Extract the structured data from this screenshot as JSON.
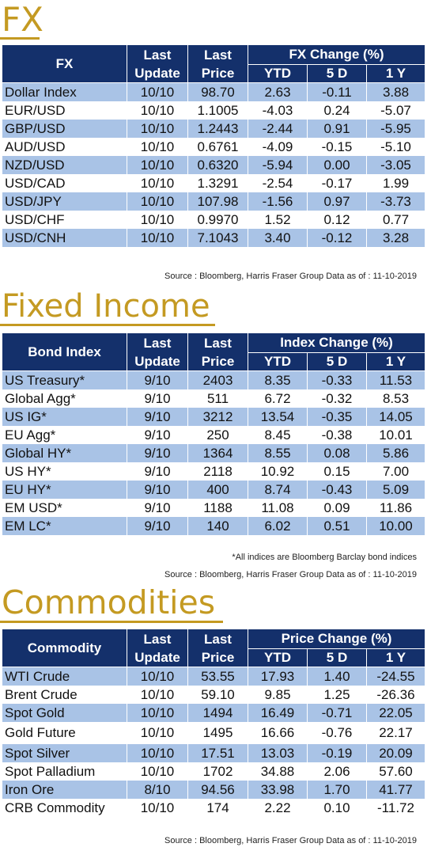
{
  "fx": {
    "title": "FX",
    "header": {
      "name": "FX",
      "last_update": [
        "Last",
        "Update"
      ],
      "last_price": [
        "Last",
        "Price"
      ],
      "group": "FX Change (%)",
      "ytd": "YTD",
      "d5": "5 D",
      "y1": "1 Y"
    },
    "rows": [
      [
        "Dollar Index",
        "10/10",
        "98.70",
        "2.63",
        "-0.11",
        "3.88"
      ],
      [
        "EUR/USD",
        "10/10",
        "1.1005",
        "-4.03",
        "0.24",
        "-5.07"
      ],
      [
        "GBP/USD",
        "10/10",
        "1.2443",
        "-2.44",
        "0.91",
        "-5.95"
      ],
      [
        "AUD/USD",
        "10/10",
        "0.6761",
        "-4.09",
        "-0.15",
        "-5.10"
      ],
      [
        "NZD/USD",
        "10/10",
        "0.6320",
        "-5.94",
        "0.00",
        "-3.05"
      ],
      [
        "USD/CAD",
        "10/10",
        "1.3291",
        "-2.54",
        "-0.17",
        "1.99"
      ],
      [
        "USD/JPY",
        "10/10",
        "107.98",
        "-1.56",
        "0.97",
        "-3.73"
      ],
      [
        "USD/CHF",
        "10/10",
        "0.9970",
        "1.52",
        "0.12",
        "0.77"
      ],
      [
        "USD/CNH",
        "10/10",
        "7.1043",
        "3.40",
        "-0.12",
        "3.28"
      ]
    ],
    "source": "Source : Bloomberg, Harris Fraser Group Data as of : 11-10-2019"
  },
  "fixed_income": {
    "title": "Fixed Income",
    "header": {
      "name": "Bond Index",
      "last_update": [
        "Last",
        "Update"
      ],
      "last_price": [
        "Last",
        "Price"
      ],
      "group": "Index Change (%)",
      "ytd": "YTD",
      "d5": "5 D",
      "y1": "1 Y"
    },
    "rows": [
      [
        "US Treasury*",
        "9/10",
        "2403",
        "8.35",
        "-0.33",
        "11.53"
      ],
      [
        "Global Agg*",
        "9/10",
        "511",
        "6.72",
        "-0.32",
        "8.53"
      ],
      [
        "US IG*",
        "9/10",
        "3212",
        "13.54",
        "-0.35",
        "14.05"
      ],
      [
        "EU Agg*",
        "9/10",
        "250",
        "8.45",
        "-0.38",
        "10.01"
      ],
      [
        "Global HY*",
        "9/10",
        "1364",
        "8.55",
        "0.08",
        "5.86"
      ],
      [
        "US HY*",
        "9/10",
        "2118",
        "10.92",
        "0.15",
        "7.00"
      ],
      [
        "EU HY*",
        "9/10",
        "400",
        "8.74",
        "-0.43",
        "5.09"
      ],
      [
        "EM USD*",
        "9/10",
        "1188",
        "11.08",
        "0.09",
        "11.86"
      ],
      [
        "EM LC*",
        "9/10",
        "140",
        "6.02",
        "0.51",
        "10.00"
      ]
    ],
    "note": "*All indices are Bloomberg Barclay bond indices",
    "source": "Source : Bloomberg, Harris Fraser Group Data as of : 11-10-2019"
  },
  "commodities": {
    "title": "Commodities",
    "header": {
      "name": "Commodity",
      "last_update": [
        "Last",
        "Update"
      ],
      "last_price": [
        "Last",
        "Price"
      ],
      "group": "Price Change (%)",
      "ytd": "YTD",
      "d5": "5 D",
      "y1": "1 Y"
    },
    "rows": [
      [
        "WTI Crude",
        "10/10",
        "53.55",
        "17.93",
        "1.40",
        "-24.55"
      ],
      [
        "Brent Crude",
        "10/10",
        "59.10",
        "9.85",
        "1.25",
        "-26.36"
      ],
      [
        "Spot Gold",
        "10/10",
        "1494",
        "16.49",
        "-0.71",
        "22.05"
      ],
      [
        "Gold Future",
        "10/10",
        "1495",
        "16.66",
        "-0.76",
        "22.17"
      ],
      [
        "Spot Silver",
        "10/10",
        "17.51",
        "13.03",
        "-0.19",
        "20.09"
      ],
      [
        "Spot Palladium",
        "10/10",
        "1702",
        "34.88",
        "2.06",
        "57.60"
      ],
      [
        "Iron Ore",
        "8/10",
        "94.56",
        "33.98",
        "1.70",
        "41.77"
      ],
      [
        "CRB Commodity",
        "10/10",
        "174",
        "2.22",
        "0.10",
        "-11.72"
      ]
    ],
    "source": "Source : Bloomberg, Harris Fraser Group Data as of : 11-10-2019"
  },
  "colors": {
    "header_bg": "#14306b",
    "stripe": "#a9c3e6",
    "title_gold": "#c49a22"
  }
}
